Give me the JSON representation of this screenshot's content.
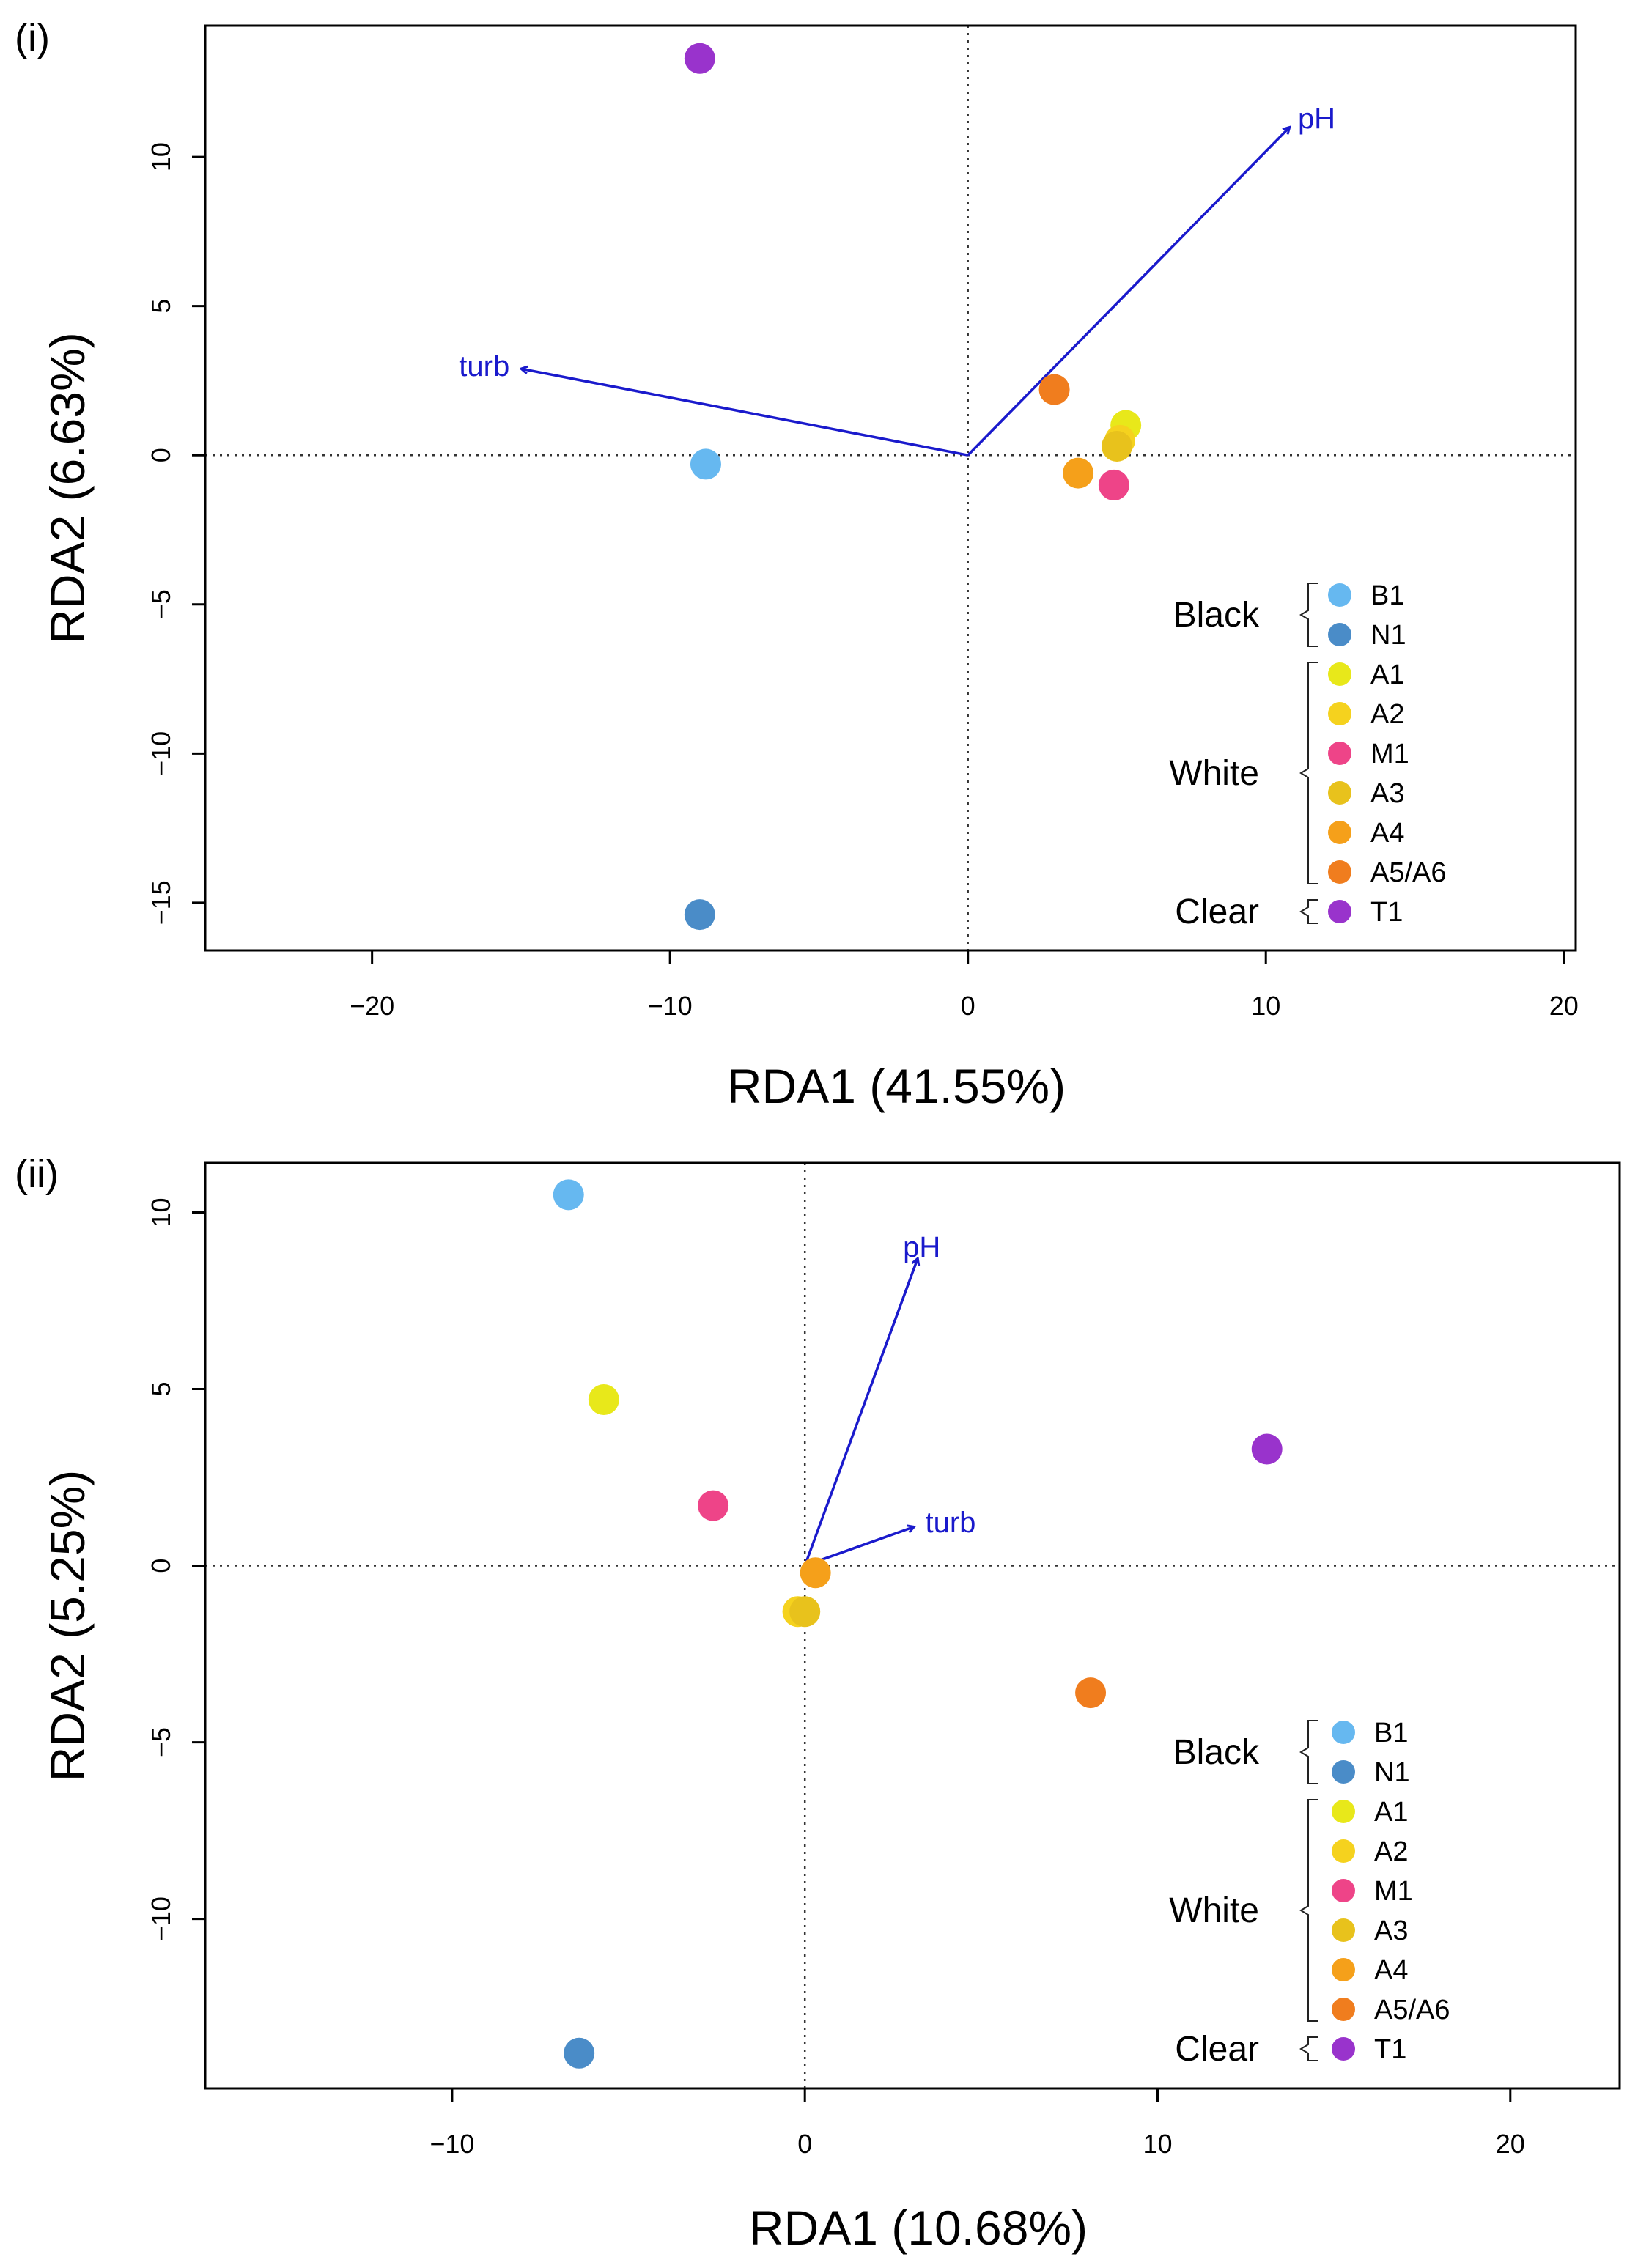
{
  "chart_data": [
    {
      "type": "scatter",
      "panel_label": "(i)",
      "xlabel": "RDA1 (41.55%)",
      "ylabel": "RDA2 (6.63%)",
      "xlim": [
        -25.6,
        20.4
      ],
      "ylim": [
        -16.6,
        14.4
      ],
      "xticks": [
        -20,
        -10,
        0,
        10,
        20
      ],
      "yticks": [
        -15,
        -10,
        -5,
        0,
        5,
        10
      ],
      "xtick_labels": [
        "−20",
        "−10",
        "0",
        "10",
        "20"
      ],
      "ytick_labels": [
        "−15",
        "−10",
        "−5",
        "0",
        "5",
        "10"
      ],
      "points": [
        {
          "label": "T1",
          "x": -9.0,
          "y": 13.3,
          "color": "#9933cc"
        },
        {
          "label": "B1",
          "x": -8.8,
          "y": -0.3,
          "color": "#66b8f0"
        },
        {
          "label": "N1",
          "x": -9.0,
          "y": -15.4,
          "color": "#4a8cc8"
        },
        {
          "label": "A5/A6",
          "x": 2.9,
          "y": 2.2,
          "color": "#f07d1e"
        },
        {
          "label": "A1",
          "x": 5.3,
          "y": 1.0,
          "color": "#e8e81a"
        },
        {
          "label": "A2",
          "x": 5.1,
          "y": 0.5,
          "color": "#f5d21e"
        },
        {
          "label": "A3",
          "x": 5.0,
          "y": 0.3,
          "color": "#e8c21c"
        },
        {
          "label": "A4",
          "x": 3.7,
          "y": -0.6,
          "color": "#f5a01a"
        },
        {
          "label": "M1",
          "x": 4.9,
          "y": -1.0,
          "color": "#ee4488"
        }
      ],
      "arrows": [
        {
          "label": "pH",
          "x": 10.8,
          "y": 11.0
        },
        {
          "label": "turb",
          "x": -15.0,
          "y": 2.9
        }
      ],
      "arrow_color": "#1a1acc",
      "legend": {
        "position": "bottom-right",
        "groups": [
          {
            "name": "Black",
            "items": [
              {
                "label": "B1",
                "color": "#66b8f0"
              },
              {
                "label": "N1",
                "color": "#4a8cc8"
              }
            ]
          },
          {
            "name": "White",
            "items": [
              {
                "label": "A1",
                "color": "#e8e81a"
              },
              {
                "label": "A2",
                "color": "#f5d21e"
              },
              {
                "label": "M1",
                "color": "#ee4488"
              },
              {
                "label": "A3",
                "color": "#e8c21c"
              },
              {
                "label": "A4",
                "color": "#f5a01a"
              },
              {
                "label": "A5/A6",
                "color": "#f07d1e"
              }
            ]
          },
          {
            "name": "Clear",
            "items": [
              {
                "label": "T1",
                "color": "#9933cc"
              }
            ]
          }
        ]
      }
    },
    {
      "type": "scatter",
      "panel_label": "(ii)",
      "xlabel": "RDA1 (10.68%)",
      "ylabel": "RDA2 (5.25%)",
      "xlim": [
        -17.0,
        23.1
      ],
      "ylim": [
        -14.8,
        11.4
      ],
      "xticks": [
        -10,
        0,
        10,
        20
      ],
      "yticks": [
        -10,
        -5,
        0,
        5,
        10
      ],
      "xtick_labels": [
        "−10",
        "0",
        "10",
        "20"
      ],
      "ytick_labels": [
        "−10",
        "−5",
        "0",
        "5",
        "10"
      ],
      "points": [
        {
          "label": "B1",
          "x": -6.7,
          "y": 10.5,
          "color": "#66b8f0"
        },
        {
          "label": "A1",
          "x": -5.7,
          "y": 4.7,
          "color": "#e8e81a"
        },
        {
          "label": "M1",
          "x": -2.6,
          "y": 1.7,
          "color": "#ee4488"
        },
        {
          "label": "T1",
          "x": 13.1,
          "y": 3.3,
          "color": "#9933cc"
        },
        {
          "label": "A4",
          "x": 0.3,
          "y": -0.2,
          "color": "#f5a01a"
        },
        {
          "label": "A2",
          "x": -0.2,
          "y": -1.3,
          "color": "#f5d21e"
        },
        {
          "label": "A3",
          "x": 0.0,
          "y": -1.3,
          "color": "#e8c21c"
        },
        {
          "label": "A5/A6",
          "x": 8.1,
          "y": -3.6,
          "color": "#f07d1e"
        },
        {
          "label": "N1",
          "x": -6.4,
          "y": -13.8,
          "color": "#4a8cc8"
        }
      ],
      "arrows": [
        {
          "label": "pH",
          "x": 3.2,
          "y": 8.7
        },
        {
          "label": "turb",
          "x": 3.1,
          "y": 1.1
        }
      ],
      "arrow_color": "#1a1acc",
      "legend": {
        "position": "bottom-right",
        "groups": [
          {
            "name": "Black",
            "items": [
              {
                "label": "B1",
                "color": "#66b8f0"
              },
              {
                "label": "N1",
                "color": "#4a8cc8"
              }
            ]
          },
          {
            "name": "White",
            "items": [
              {
                "label": "A1",
                "color": "#e8e81a"
              },
              {
                "label": "A2",
                "color": "#f5d21e"
              },
              {
                "label": "M1",
                "color": "#ee4488"
              },
              {
                "label": "A3",
                "color": "#e8c21c"
              },
              {
                "label": "A4",
                "color": "#f5a01a"
              },
              {
                "label": "A5/A6",
                "color": "#f07d1e"
              }
            ]
          },
          {
            "name": "Clear",
            "items": [
              {
                "label": "T1",
                "color": "#9933cc"
              }
            ]
          }
        ]
      }
    }
  ]
}
